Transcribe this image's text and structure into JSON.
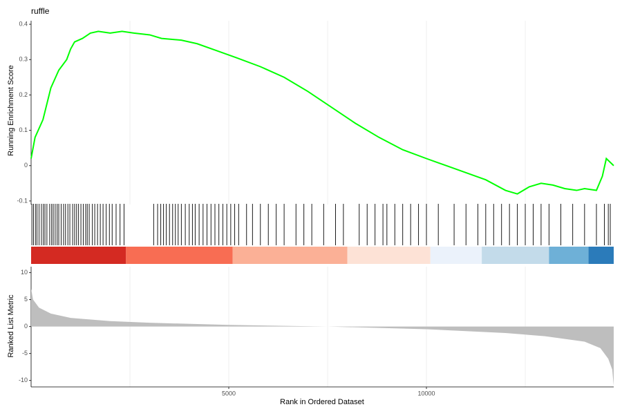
{
  "chart_data": [
    {
      "type": "line",
      "title": "ruffle",
      "ylabel": "Running Enrichment Score",
      "xlim": [
        0,
        14737
      ],
      "ylim": [
        -0.11,
        0.41
      ],
      "yticks": [
        -0.1,
        0.0,
        0.1,
        0.2,
        0.3,
        0.4
      ],
      "xgrid": [
        2500,
        5000,
        7500,
        10000,
        12500
      ],
      "color": "#00ff00",
      "x": [
        0,
        100,
        300,
        500,
        700,
        900,
        1000,
        1100,
        1300,
        1500,
        1700,
        2000,
        2300,
        2600,
        3000,
        3300,
        3800,
        4200,
        4700,
        5200,
        5800,
        6400,
        7000,
        7600,
        8200,
        8800,
        9400,
        10000,
        10500,
        11000,
        11500,
        12000,
        12300,
        12600,
        12900,
        13200,
        13500,
        13800,
        14000,
        14300,
        14450,
        14550,
        14737
      ],
      "values": [
        0.02,
        0.08,
        0.13,
        0.22,
        0.27,
        0.3,
        0.33,
        0.35,
        0.36,
        0.375,
        0.38,
        0.375,
        0.38,
        0.375,
        0.37,
        0.36,
        0.355,
        0.345,
        0.325,
        0.305,
        0.28,
        0.25,
        0.21,
        0.165,
        0.12,
        0.08,
        0.045,
        0.02,
        0.0,
        -0.02,
        -0.04,
        -0.07,
        -0.08,
        -0.06,
        -0.05,
        -0.055,
        -0.065,
        -0.07,
        -0.065,
        -0.07,
        -0.03,
        0.02,
        0.0
      ]
    },
    {
      "type": "rug",
      "xlim": [
        0,
        14737
      ],
      "hits": [
        20,
        60,
        110,
        150,
        200,
        260,
        310,
        350,
        400,
        470,
        520,
        560,
        610,
        660,
        700,
        760,
        820,
        870,
        930,
        980,
        1050,
        1100,
        1150,
        1200,
        1260,
        1320,
        1380,
        1420,
        1470,
        1550,
        1610,
        1680,
        1750,
        1820,
        1900,
        1980,
        2050,
        2150,
        2250,
        2350,
        3100,
        3200,
        3280,
        3350,
        3420,
        3500,
        3580,
        3650,
        3720,
        3800,
        3900,
        4000,
        4080,
        4150,
        4250,
        4350,
        4450,
        4550,
        4650,
        4750,
        4850,
        4950,
        5050,
        5150,
        5250,
        5450,
        5600,
        5800,
        6000,
        6200,
        6400,
        6700,
        6900,
        7100,
        7400,
        7700,
        7900,
        8300,
        8500,
        8700,
        8900,
        9000,
        9200,
        9400,
        9600,
        9800,
        10000,
        10300,
        10700,
        11000,
        11300,
        11500,
        11700,
        11900,
        12100,
        12300,
        12500,
        12700,
        12900,
        13100,
        13400,
        13700,
        14000,
        14300,
        14500,
        14600,
        14650
      ],
      "bands": [
        {
          "start": 0,
          "end": 2400,
          "color": "#d42a22"
        },
        {
          "start": 2400,
          "end": 5100,
          "color": "#f86d53"
        },
        {
          "start": 5100,
          "end": 8000,
          "color": "#fbb096"
        },
        {
          "start": 8000,
          "end": 10100,
          "color": "#fde2d6"
        },
        {
          "start": 10100,
          "end": 11400,
          "color": "#ebf2fb"
        },
        {
          "start": 11400,
          "end": 13100,
          "color": "#c3dbea"
        },
        {
          "start": 13100,
          "end": 14100,
          "color": "#6eb0d7"
        },
        {
          "start": 14100,
          "end": 14737,
          "color": "#2b7bba"
        }
      ]
    },
    {
      "type": "area",
      "ylabel": "Ranked List Metric",
      "xlabel": "Rank in Ordered Dataset",
      "xlim": [
        0,
        14737
      ],
      "ylim": [
        -11.2,
        11.1
      ],
      "yticks": [
        -10,
        -5,
        0,
        5,
        10
      ],
      "xticks": [
        5000,
        10000
      ],
      "xgrid": [
        2500,
        5000,
        7500,
        10000,
        12500
      ],
      "color": "#bebebe",
      "x": [
        0,
        50,
        200,
        500,
        1000,
        2000,
        3000,
        5000,
        7500,
        10000,
        12000,
        13000,
        14000,
        14400,
        14600,
        14700,
        14737
      ],
      "values": [
        7,
        5,
        3.5,
        2.4,
        1.6,
        1.0,
        0.7,
        0.3,
        0,
        -0.5,
        -1.2,
        -1.8,
        -2.8,
        -4,
        -6,
        -8,
        -11
      ]
    }
  ]
}
